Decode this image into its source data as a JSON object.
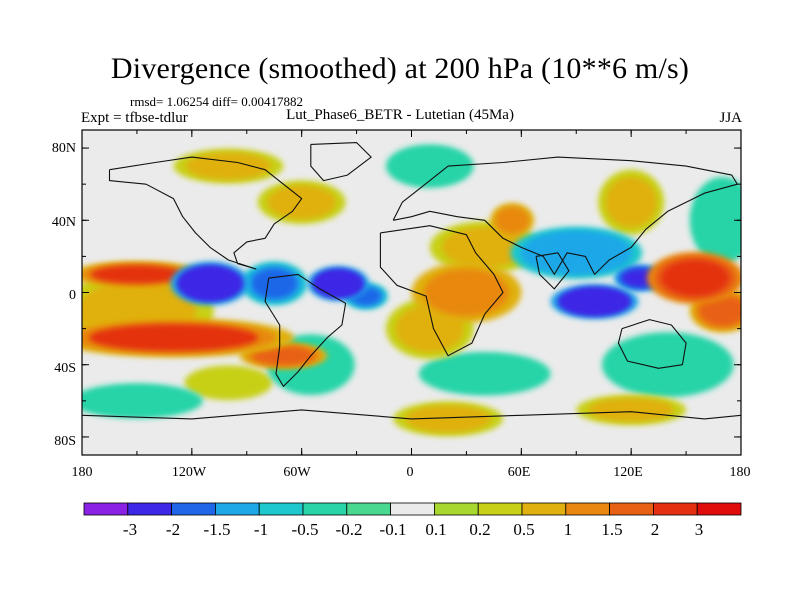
{
  "title": "Divergence (smoothed) at 200 hPa (10**6 m/s)",
  "stats": "rmsd= 1.06254 diff= 0.00417882",
  "left_label": "Expt = tfbse-tdlur",
  "center_label": "Lut_Phase6_BETR - Lutetian (45Ma)",
  "right_label": "JJA",
  "lat_labels": [
    "80N",
    "40N",
    "0",
    "40S",
    "80S"
  ],
  "lon_labels": [
    "180",
    "120W",
    "60W",
    "0",
    "60E",
    "120E",
    "180"
  ],
  "colorbar": {
    "colors": [
      "#8c21e6",
      "#3c28e6",
      "#1f66e8",
      "#1ea8e8",
      "#1fc8cc",
      "#28d4a8",
      "#48d890",
      "#ebebeb",
      "#a8d830",
      "#c8d018",
      "#e0b010",
      "#e88810",
      "#e86014",
      "#e43010",
      "#e00c0c"
    ],
    "labels": [
      "-3",
      "-2",
      "-1.5",
      "-1",
      "-0.5",
      "-0.2",
      "-0.1",
      "0.1",
      "0.2",
      "0.5",
      "1",
      "1.5",
      "2",
      "3"
    ]
  },
  "chart_data": {
    "type": "heatmap",
    "title": "Divergence (smoothed) at 200 hPa (10**6 m/s)",
    "units": "10**6 m/s",
    "level": "200 hPa",
    "season": "JJA",
    "x_range": [
      -180,
      180
    ],
    "y_range": [
      -90,
      90
    ],
    "levels": [
      -3,
      -2,
      -1.5,
      -1,
      -0.5,
      -0.2,
      -0.1,
      0.1,
      0.2,
      0.5,
      1,
      1.5,
      2,
      3
    ],
    "features": [
      {
        "lon": -110,
        "lat": 5,
        "value": -3.0,
        "rx": 18,
        "ry": 10
      },
      {
        "lon": -75,
        "lat": 5,
        "value": -2.0,
        "rx": 15,
        "ry": 10
      },
      {
        "lon": -40,
        "lat": 5,
        "value": -3.0,
        "rx": 14,
        "ry": 8
      },
      {
        "lon": -25,
        "lat": -2,
        "value": -2.0,
        "rx": 10,
        "ry": 6
      },
      {
        "lon": 100,
        "lat": -5,
        "value": -3.0,
        "rx": 20,
        "ry": 8
      },
      {
        "lon": 125,
        "lat": 8,
        "value": -2.5,
        "rx": 12,
        "ry": 6
      },
      {
        "lon": 90,
        "lat": 22,
        "value": -1.5,
        "rx": 30,
        "ry": 12
      },
      {
        "lon": 140,
        "lat": -40,
        "value": -0.5,
        "rx": 30,
        "ry": 15
      },
      {
        "lon": -150,
        "lat": -60,
        "value": -0.5,
        "rx": 30,
        "ry": 8
      },
      {
        "lon": -55,
        "lat": -40,
        "value": -0.5,
        "rx": 20,
        "ry": 14
      },
      {
        "lon": 40,
        "lat": -45,
        "value": -0.5,
        "rx": 30,
        "ry": 10
      },
      {
        "lon": 10,
        "lat": 70,
        "value": -0.5,
        "rx": 20,
        "ry": 10
      },
      {
        "lon": 170,
        "lat": 40,
        "value": -0.5,
        "rx": 15,
        "ry": 20
      },
      {
        "lon": -150,
        "lat": -10,
        "value": 0.5,
        "rx": 35,
        "ry": 18
      },
      {
        "lon": -150,
        "lat": 10,
        "value": 2.0,
        "rx": 30,
        "ry": 6
      },
      {
        "lon": -130,
        "lat": -25,
        "value": 2.0,
        "rx": 55,
        "ry": 9
      },
      {
        "lon": -70,
        "lat": -35,
        "value": 1.5,
        "rx": 20,
        "ry": 6
      },
      {
        "lon": 155,
        "lat": 8,
        "value": 2.5,
        "rx": 22,
        "ry": 12
      },
      {
        "lon": 170,
        "lat": -10,
        "value": 1.5,
        "rx": 15,
        "ry": 10
      },
      {
        "lon": 30,
        "lat": 0,
        "value": 1.0,
        "rx": 25,
        "ry": 14
      },
      {
        "lon": 10,
        "lat": -20,
        "value": 0.5,
        "rx": 20,
        "ry": 14
      },
      {
        "lon": 40,
        "lat": 25,
        "value": 0.5,
        "rx": 25,
        "ry": 12
      },
      {
        "lon": 55,
        "lat": 40,
        "value": 1.0,
        "rx": 10,
        "ry": 8
      },
      {
        "lon": -60,
        "lat": 50,
        "value": 0.5,
        "rx": 20,
        "ry": 10
      },
      {
        "lon": 120,
        "lat": 50,
        "value": 0.5,
        "rx": 15,
        "ry": 15
      },
      {
        "lon": -100,
        "lat": 70,
        "value": 0.5,
        "rx": 25,
        "ry": 8
      },
      {
        "lon": 20,
        "lat": -70,
        "value": 0.5,
        "rx": 25,
        "ry": 8
      },
      {
        "lon": 120,
        "lat": -65,
        "value": 0.5,
        "rx": 25,
        "ry": 7
      },
      {
        "lon": -100,
        "lat": -50,
        "value": 0.3,
        "rx": 20,
        "ry": 8
      }
    ]
  }
}
